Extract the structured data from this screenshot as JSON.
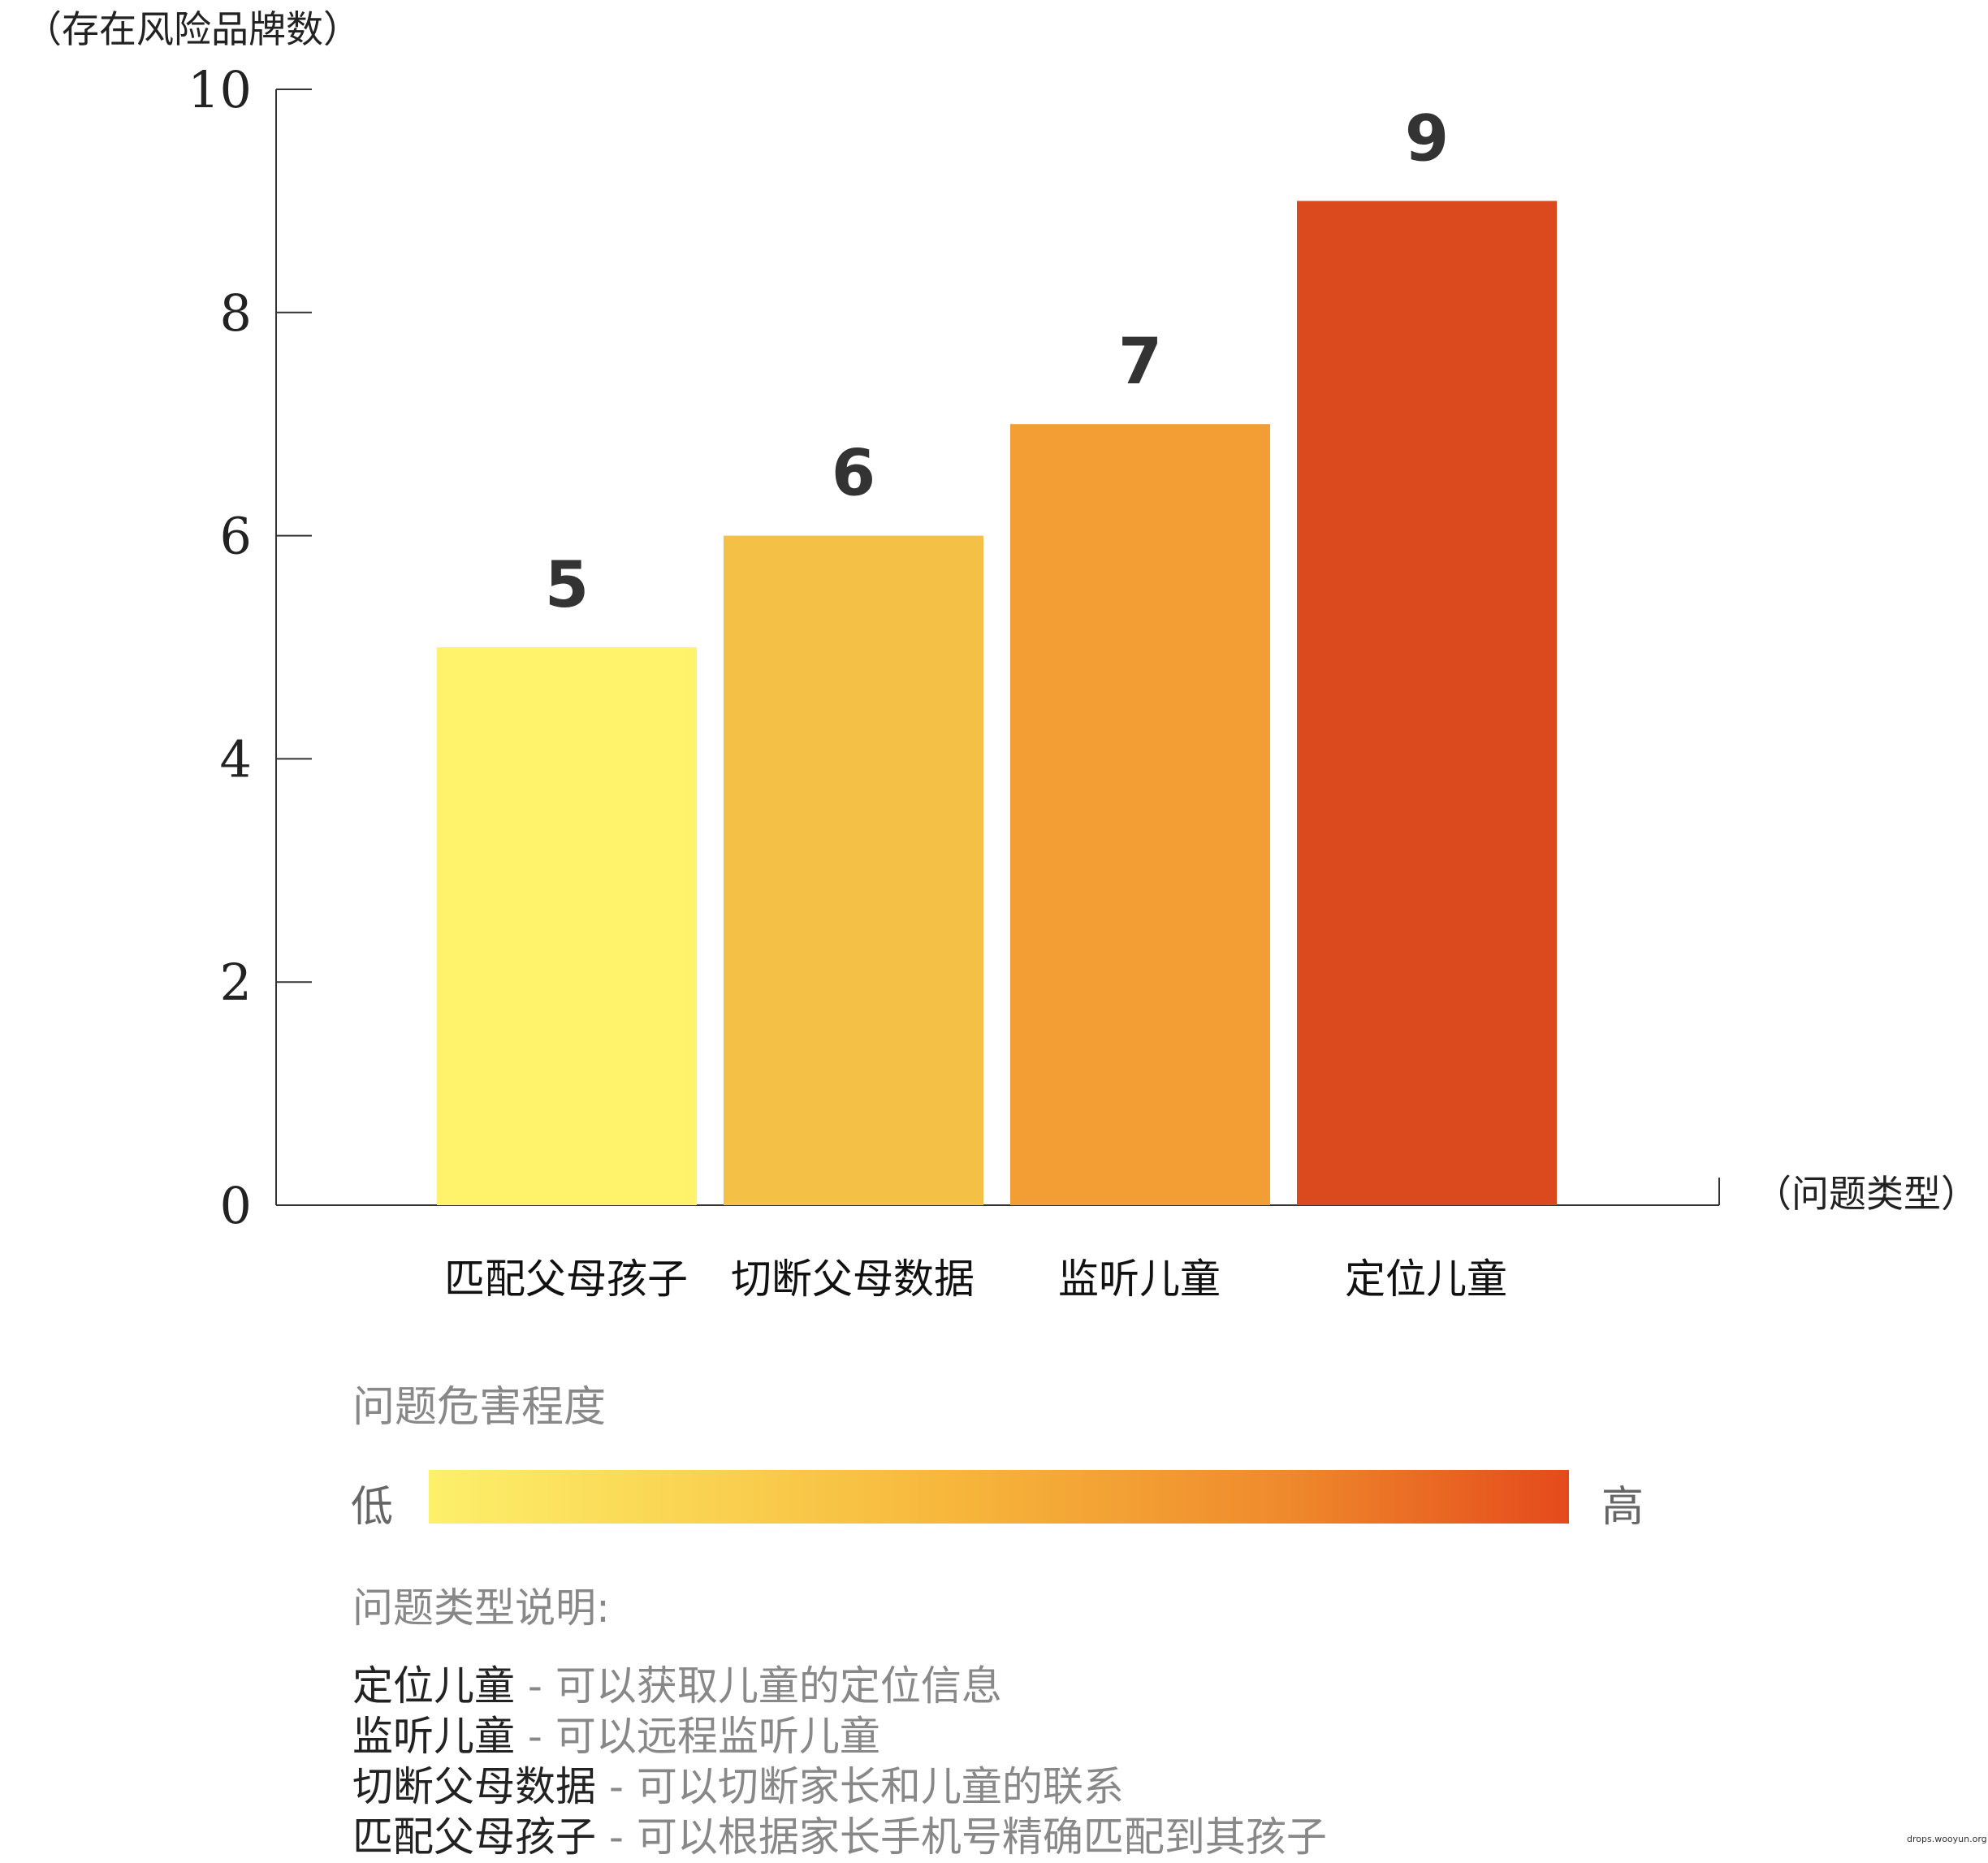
{
  "chart_data": {
    "type": "bar",
    "ylabel": "（存在风险品牌数）",
    "xlabel": "（问题类型）",
    "ylim": [
      0,
      10
    ],
    "yticks": [
      0,
      2,
      4,
      6,
      8,
      10
    ],
    "categories": [
      "匹配父母孩子",
      "切断父母数据",
      "监听儿童",
      "定位儿童"
    ],
    "values": [
      5,
      6,
      7,
      9
    ],
    "colors": [
      "#fef36a",
      "#f4c146",
      "#f29e34",
      "#db4a1f"
    ],
    "value_labels": [
      "5",
      "6",
      "7",
      "9"
    ]
  },
  "legend": {
    "title": "问题危害程度",
    "low": "低",
    "high": "高",
    "gradient_colors": [
      "#fdf06a",
      "#f7b83c",
      "#ef8a2c",
      "#e54a1c"
    ]
  },
  "descriptions": {
    "title": "问题类型说明:",
    "items": [
      {
        "name": "定位儿童",
        "text": " - 可以获取儿童的定位信息"
      },
      {
        "name": "监听儿童",
        "text": " - 可以远程监听儿童"
      },
      {
        "name": "切断父母数据",
        "text": " - 可以切断家长和儿童的联系"
      },
      {
        "name": "匹配父母孩子",
        "text": " - 可以根据家长手机号精确匹配到其孩子"
      }
    ]
  },
  "watermark": "drops.wooyun.org"
}
